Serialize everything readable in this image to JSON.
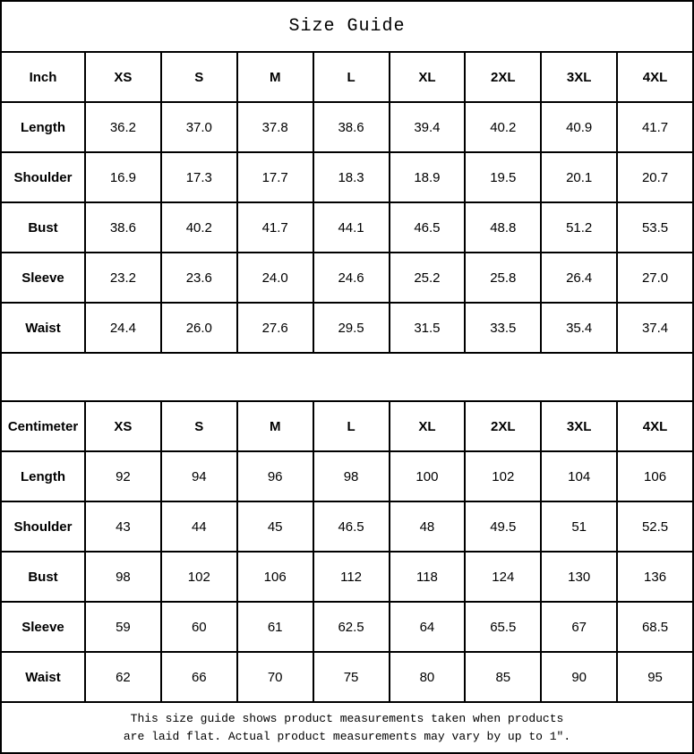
{
  "title": "Size Guide",
  "colors": {
    "border": "#000000",
    "background": "#ffffff",
    "text": "#000000"
  },
  "tables": [
    {
      "unit_label": "Inch",
      "sizes": [
        "XS",
        "S",
        "M",
        "L",
        "XL",
        "2XL",
        "3XL",
        "4XL"
      ],
      "rows": [
        {
          "label": "Length",
          "values": [
            "36.2",
            "37.0",
            "37.8",
            "38.6",
            "39.4",
            "40.2",
            "40.9",
            "41.7"
          ]
        },
        {
          "label": "Shoulder",
          "values": [
            "16.9",
            "17.3",
            "17.7",
            "18.3",
            "18.9",
            "19.5",
            "20.1",
            "20.7"
          ]
        },
        {
          "label": "Bust",
          "values": [
            "38.6",
            "40.2",
            "41.7",
            "44.1",
            "46.5",
            "48.8",
            "51.2",
            "53.5"
          ]
        },
        {
          "label": "Sleeve",
          "values": [
            "23.2",
            "23.6",
            "24.0",
            "24.6",
            "25.2",
            "25.8",
            "26.4",
            "27.0"
          ]
        },
        {
          "label": "Waist",
          "values": [
            "24.4",
            "26.0",
            "27.6",
            "29.5",
            "31.5",
            "33.5",
            "35.4",
            "37.4"
          ]
        }
      ]
    },
    {
      "unit_label": "Centimeter",
      "sizes": [
        "XS",
        "S",
        "M",
        "L",
        "XL",
        "2XL",
        "3XL",
        "4XL"
      ],
      "rows": [
        {
          "label": "Length",
          "values": [
            "92",
            "94",
            "96",
            "98",
            "100",
            "102",
            "104",
            "106"
          ]
        },
        {
          "label": "Shoulder",
          "values": [
            "43",
            "44",
            "45",
            "46.5",
            "48",
            "49.5",
            "51",
            "52.5"
          ]
        },
        {
          "label": "Bust",
          "values": [
            "98",
            "102",
            "106",
            "112",
            "118",
            "124",
            "130",
            "136"
          ]
        },
        {
          "label": "Sleeve",
          "values": [
            "59",
            "60",
            "61",
            "62.5",
            "64",
            "65.5",
            "67",
            "68.5"
          ]
        },
        {
          "label": "Waist",
          "values": [
            "62",
            "66",
            "70",
            "75",
            "80",
            "85",
            "90",
            "95"
          ]
        }
      ]
    }
  ],
  "footer": {
    "line1": "This size guide shows product measurements taken when products",
    "line2": "are laid flat. Actual product measurements may vary by up to 1″."
  }
}
